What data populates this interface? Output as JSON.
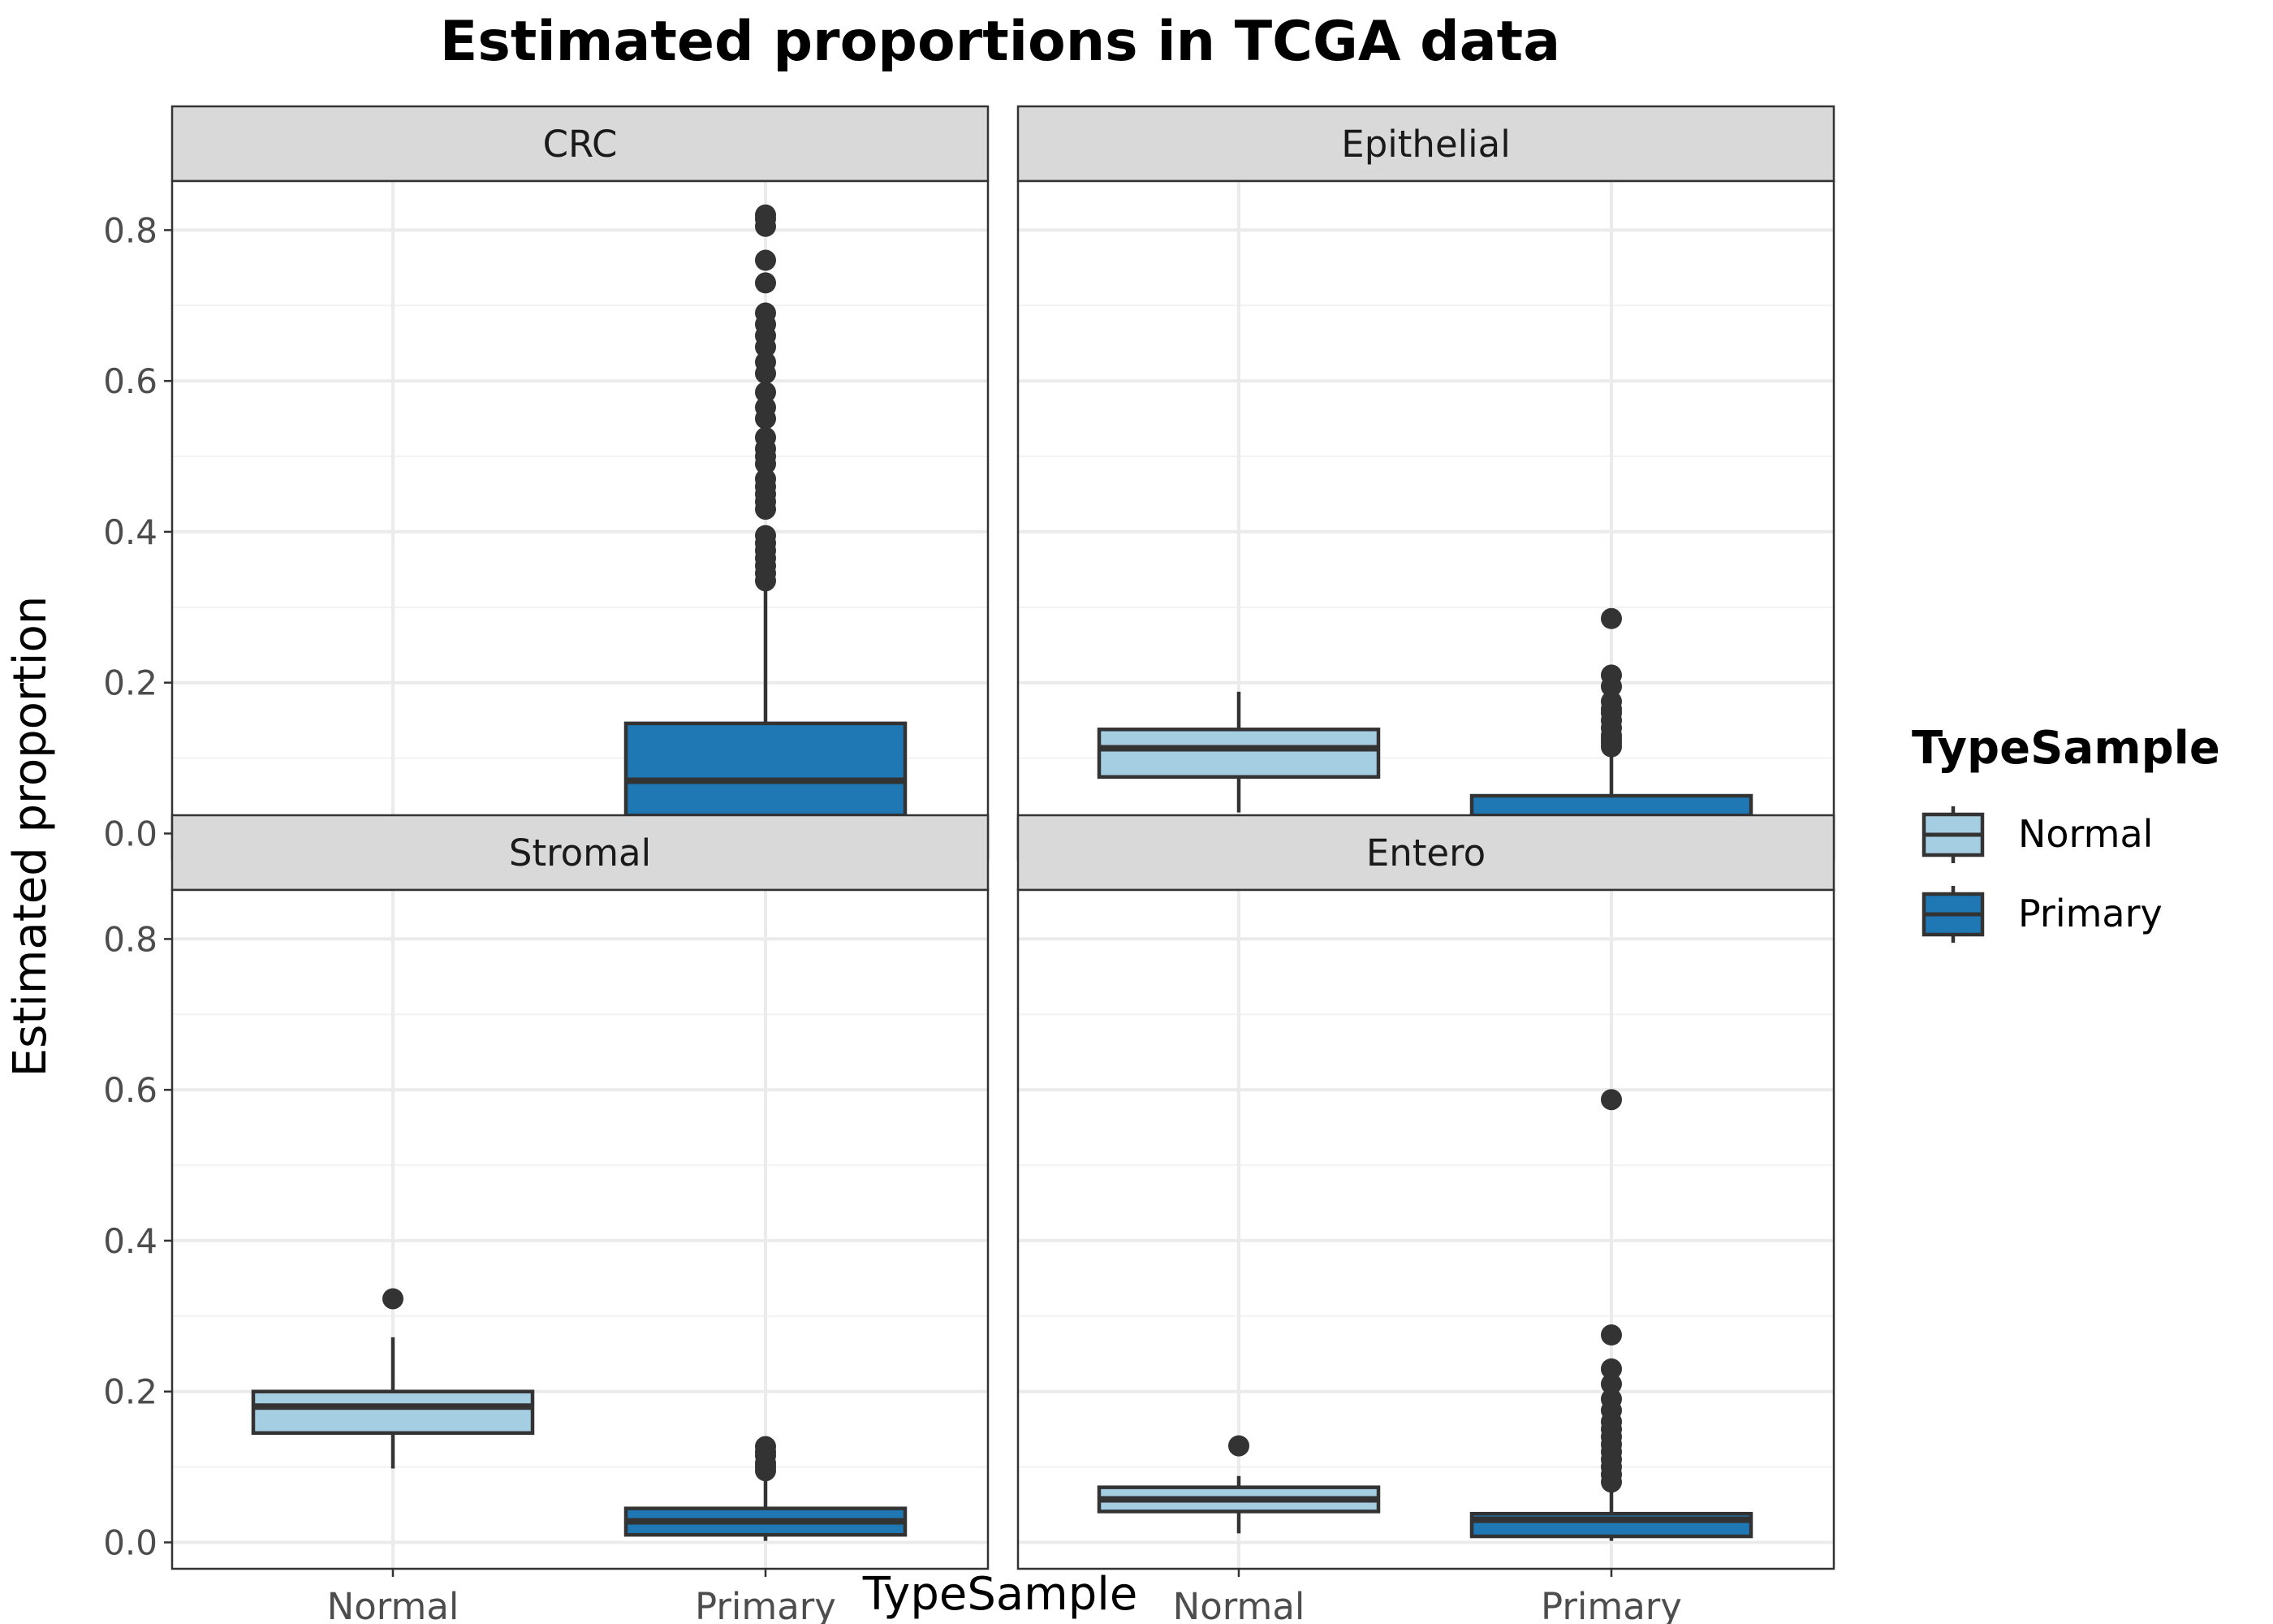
{
  "chart_data": {
    "type": "box",
    "title": "Estimated proportions in TCGA data",
    "xlabel": "TypeSample",
    "ylabel": "Estimated proportion",
    "ylim": [
      -0.035,
      0.865
    ],
    "yticks": [
      "0.0",
      "0.2",
      "0.4",
      "0.6",
      "0.8"
    ],
    "ytick_values": [
      0,
      0.2,
      0.4,
      0.6,
      0.8
    ],
    "categories": [
      "Normal",
      "Primary"
    ],
    "grid": true,
    "facet_layout": "2x2",
    "legend": {
      "title": "TypeSample",
      "placement": "right",
      "entries": [
        {
          "label": "Normal",
          "color": "#a6cee3"
        },
        {
          "label": "Primary",
          "color": "#1f78b4"
        }
      ]
    },
    "facets": [
      {
        "label": "CRC",
        "boxes": [
          {
            "category": "Normal",
            "min": 0.0,
            "q1": 0.0,
            "median": 0.0,
            "q3": 0.0,
            "max": 0.0,
            "outliers": [
              0.002
            ]
          },
          {
            "category": "Primary",
            "min": 0.002,
            "q1": 0.024,
            "median": 0.07,
            "q3": 0.146,
            "max": 0.33,
            "outliers": [
              0.335,
              0.345,
              0.355,
              0.365,
              0.375,
              0.385,
              0.395,
              0.43,
              0.44,
              0.45,
              0.46,
              0.47,
              0.49,
              0.5,
              0.51,
              0.525,
              0.55,
              0.565,
              0.585,
              0.61,
              0.625,
              0.645,
              0.66,
              0.675,
              0.69,
              0.73,
              0.76,
              0.805,
              0.815,
              0.82
            ]
          }
        ]
      },
      {
        "label": "Epithelial",
        "boxes": [
          {
            "category": "Normal",
            "min": 0.028,
            "q1": 0.075,
            "median": 0.113,
            "q3": 0.138,
            "max": 0.188,
            "outliers": []
          },
          {
            "category": "Primary",
            "min": 0.003,
            "q1": 0.008,
            "median": 0.022,
            "q3": 0.05,
            "max": 0.11,
            "outliers": [
              0.115,
              0.12,
              0.125,
              0.13,
              0.14,
              0.15,
              0.16,
              0.165,
              0.175,
              0.195,
              0.21,
              0.285
            ]
          }
        ]
      },
      {
        "label": "Stromal",
        "boxes": [
          {
            "category": "Normal",
            "min": 0.098,
            "q1": 0.145,
            "median": 0.18,
            "q3": 0.2,
            "max": 0.272,
            "outliers": [
              0.323
            ]
          },
          {
            "category": "Primary",
            "min": 0.002,
            "q1": 0.01,
            "median": 0.028,
            "q3": 0.045,
            "max": 0.09,
            "outliers": [
              0.095,
              0.1,
              0.105,
              0.115,
              0.12,
              0.127
            ]
          }
        ]
      },
      {
        "label": "Entero",
        "boxes": [
          {
            "category": "Normal",
            "min": 0.012,
            "q1": 0.041,
            "median": 0.057,
            "q3": 0.073,
            "max": 0.088,
            "outliers": [
              0.128
            ]
          },
          {
            "category": "Primary",
            "min": 0.002,
            "q1": 0.008,
            "median": 0.03,
            "q3": 0.038,
            "max": 0.075,
            "outliers": [
              0.08,
              0.09,
              0.1,
              0.11,
              0.12,
              0.13,
              0.14,
              0.15,
              0.16,
              0.175,
              0.19,
              0.21,
              0.23,
              0.275,
              0.587
            ]
          }
        ]
      }
    ]
  }
}
